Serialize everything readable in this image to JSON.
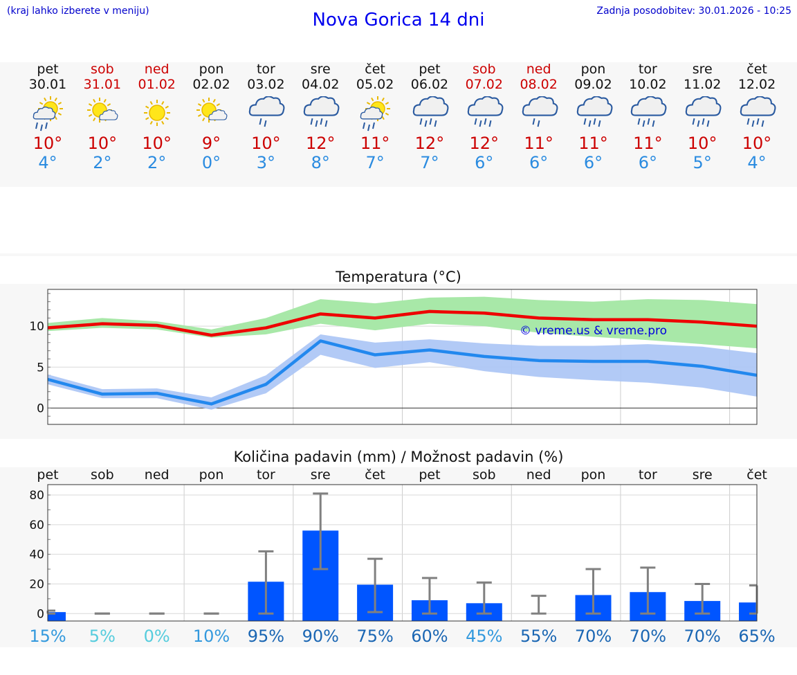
{
  "header": {
    "hint": "(kraj lahko izberete v meniju)",
    "title": "Nova Gorica 14 dni",
    "updated": "Zadnja posodobitev: 30.01.2026 - 10:25"
  },
  "days": [
    {
      "name": "pet",
      "date": "30.01",
      "weekend": false,
      "icon": "sun-cloud-rain-icon",
      "tmax": "10°",
      "tmin": "4°"
    },
    {
      "name": "sob",
      "date": "31.01",
      "weekend": true,
      "icon": "sun-small-cloud-icon",
      "tmax": "10°",
      "tmin": "2°"
    },
    {
      "name": "ned",
      "date": "01.02",
      "weekend": true,
      "icon": "sun-icon",
      "tmax": "10°",
      "tmin": "2°"
    },
    {
      "name": "pon",
      "date": "02.02",
      "weekend": false,
      "icon": "sun-small-cloud-icon",
      "tmax": "9°",
      "tmin": "0°"
    },
    {
      "name": "tor",
      "date": "03.02",
      "weekend": false,
      "icon": "cloud-light-rain-icon",
      "tmax": "10°",
      "tmin": "3°"
    },
    {
      "name": "sre",
      "date": "04.02",
      "weekend": false,
      "icon": "cloud-rain-icon",
      "tmax": "12°",
      "tmin": "8°"
    },
    {
      "name": "čet",
      "date": "05.02",
      "weekend": false,
      "icon": "sun-cloud-rain-icon",
      "tmax": "11°",
      "tmin": "7°"
    },
    {
      "name": "pet",
      "date": "06.02",
      "weekend": false,
      "icon": "cloud-rain-icon",
      "tmax": "12°",
      "tmin": "7°"
    },
    {
      "name": "sob",
      "date": "07.02",
      "weekend": true,
      "icon": "cloud-rain-icon",
      "tmax": "12°",
      "tmin": "6°"
    },
    {
      "name": "ned",
      "date": "08.02",
      "weekend": true,
      "icon": "cloud-light-rain-icon",
      "tmax": "11°",
      "tmin": "6°"
    },
    {
      "name": "pon",
      "date": "09.02",
      "weekend": false,
      "icon": "cloud-rain-icon",
      "tmax": "11°",
      "tmin": "6°"
    },
    {
      "name": "tor",
      "date": "10.02",
      "weekend": false,
      "icon": "cloud-rain-icon",
      "tmax": "11°",
      "tmin": "6°"
    },
    {
      "name": "sre",
      "date": "11.02",
      "weekend": false,
      "icon": "cloud-rain-icon",
      "tmax": "10°",
      "tmin": "5°"
    },
    {
      "name": "čet",
      "date": "12.02",
      "weekend": false,
      "icon": "cloud-rain-icon",
      "tmax": "10°",
      "tmin": "4°"
    }
  ],
  "colors": {
    "max_line": "#ee0000",
    "max_band": "#a8e8a8",
    "min_line": "#2288ee",
    "min_band": "#aac4f5",
    "bar": "#0055ff",
    "whisker": "#808080",
    "red_text": "#cc0000",
    "blue_text": "#2a8be0"
  },
  "chart_data": [
    {
      "type": "line",
      "title": "Temperatura (°C)",
      "watermark": "© vreme.us & vreme.pro",
      "categories": [
        "30.01",
        "31.01",
        "01.02",
        "02.02",
        "03.02",
        "04.02",
        "05.02",
        "06.02",
        "07.02",
        "08.02",
        "09.02",
        "10.02",
        "11.02",
        "12.02"
      ],
      "ylim": [
        -2,
        14.5
      ],
      "yticks": [
        0,
        5,
        10
      ],
      "series": [
        {
          "name": "max",
          "values": [
            9.8,
            10.3,
            10.1,
            8.9,
            9.8,
            11.5,
            11.0,
            11.8,
            11.6,
            11.0,
            10.8,
            10.8,
            10.5,
            10.0
          ],
          "band_low": [
            9.4,
            9.8,
            9.6,
            8.6,
            9.0,
            10.3,
            9.5,
            10.3,
            10.0,
            9.2,
            8.7,
            8.3,
            7.8,
            7.3
          ],
          "band_high": [
            10.4,
            11.0,
            10.6,
            9.6,
            11.0,
            13.3,
            12.8,
            13.5,
            13.6,
            13.2,
            13.0,
            13.3,
            13.2,
            12.7
          ]
        },
        {
          "name": "min",
          "values": [
            3.5,
            1.7,
            1.8,
            0.5,
            2.9,
            8.2,
            6.5,
            7.1,
            6.3,
            5.8,
            5.7,
            5.7,
            5.1,
            4.0
          ],
          "band_low": [
            2.9,
            1.2,
            1.2,
            -0.2,
            1.8,
            6.5,
            4.9,
            5.6,
            4.5,
            3.8,
            3.4,
            3.1,
            2.5,
            1.4
          ],
          "band_high": [
            4.1,
            2.3,
            2.4,
            1.3,
            4.0,
            9.0,
            8.0,
            8.4,
            7.9,
            7.6,
            7.6,
            7.8,
            7.5,
            6.7
          ]
        }
      ]
    },
    {
      "type": "bar",
      "title": "Količina padavin (mm) / Možnost padavin (%)",
      "day_labels": [
        "pet",
        "sob",
        "ned",
        "pon",
        "tor",
        "sre",
        "čet",
        "pet",
        "sob",
        "ned",
        "pon",
        "tor",
        "sre",
        "čet"
      ],
      "ylim": [
        -5,
        87
      ],
      "yticks": [
        0,
        20,
        40,
        60,
        80
      ],
      "values": [
        1,
        0,
        0,
        0,
        21.5,
        56,
        19.5,
        9,
        7,
        0,
        12.5,
        14.5,
        8.5,
        7.5
      ],
      "err_low": [
        0,
        0,
        0,
        0,
        0,
        30,
        1,
        0,
        0,
        0,
        0,
        0,
        0,
        0
      ],
      "err_high": [
        2,
        0,
        0,
        0,
        42,
        81,
        37,
        24,
        21,
        12,
        30,
        31,
        20,
        19
      ],
      "probabilities": [
        "15%",
        "5%",
        "0%",
        "10%",
        "95%",
        "90%",
        "75%",
        "60%",
        "45%",
        "55%",
        "70%",
        "70%",
        "70%",
        "65%"
      ],
      "prob_colors": [
        "#3399dd",
        "#55ccdd",
        "#55ccdd",
        "#3399dd",
        "#1a66b3",
        "#1a66b3",
        "#1a66b3",
        "#1a66b3",
        "#3399dd",
        "#1a66b3",
        "#1a66b3",
        "#1a66b3",
        "#1a66b3",
        "#1a66b3"
      ]
    }
  ]
}
